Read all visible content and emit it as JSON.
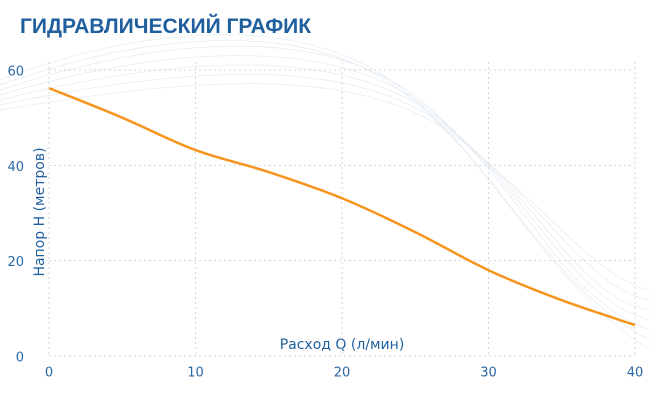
{
  "chart_data": {
    "type": "line",
    "title": "ГИДРАВЛИЧЕСКИЙ ГРАФИК",
    "x_label": "Расход Q (л/мин)",
    "y_label": "Напор H (метров)",
    "x": [
      0,
      5,
      10,
      15,
      20,
      25,
      30,
      35,
      40
    ],
    "series": [
      {
        "color": "#f7941d",
        "values": [
          56.2,
          50,
          43.2,
          38.6,
          33.1,
          26,
          18,
          11.7,
          6.5
        ]
      }
    ],
    "xlim": [
      0,
      40
    ],
    "xticks": [
      0,
      10,
      20,
      30,
      40
    ],
    "ylim": [
      0,
      60
    ],
    "yticks": [
      0,
      20,
      40,
      60
    ],
    "grid": true
  }
}
